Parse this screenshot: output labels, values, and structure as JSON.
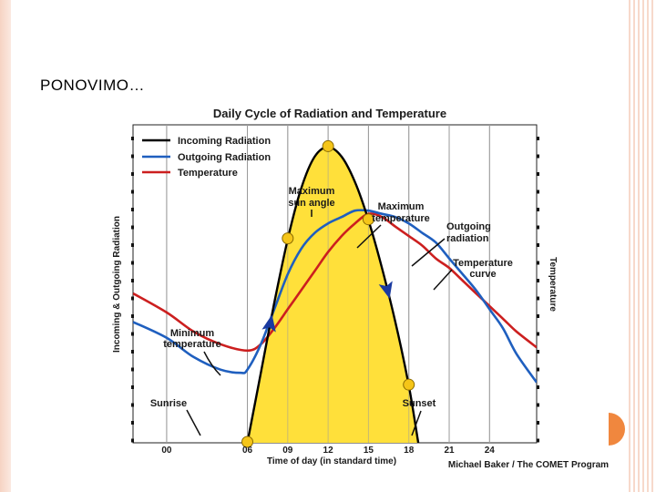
{
  "slide": {
    "title": "PONOVIMO…"
  },
  "colors": {
    "incoming": "#000000",
    "outgoing": "#1f5fbf",
    "temperature": "#cc1f1f",
    "sunFill": "#ffe03a",
    "marker": "#f5c518",
    "arrow": "#1a3aa0",
    "accent": "#f0873e"
  },
  "chart_data": {
    "type": "line",
    "title": "Daily Cycle of Radiation and Temperature",
    "xlabel": "Time of day (in standard time)",
    "ylabel_left": "Incoming & Outgoing Radiation",
    "ylabel_right": "Temperature",
    "credit": "Michael Baker / The COMET Program",
    "x_ticks": [
      "00",
      "06",
      "09",
      "12",
      "15",
      "18",
      "21",
      "24"
    ],
    "x_tick_values": [
      0,
      6,
      9,
      12,
      15,
      18,
      21,
      24
    ],
    "xlim": [
      -2.5,
      27.5
    ],
    "ylim": [
      0,
      100
    ],
    "legend": [
      {
        "label": "Incoming Radiation",
        "color": "#000000"
      },
      {
        "label": "Outgoing Radiation",
        "color": "#1f5fbf"
      },
      {
        "label": "Temperature",
        "color": "#cc1f1f"
      }
    ],
    "series": [
      {
        "name": "Incoming Radiation",
        "x": [
          6,
          7,
          8,
          9,
          10,
          11,
          12,
          13,
          14,
          15,
          16,
          17,
          18,
          18.7
        ],
        "values": [
          0,
          22,
          44,
          64,
          80,
          90,
          93,
          90,
          82,
          70,
          55,
          38,
          18,
          0
        ]
      },
      {
        "name": "Outgoing Radiation",
        "x": [
          -2.5,
          0,
          2,
          4,
          5.5,
          6,
          7,
          8,
          9,
          10,
          11,
          12,
          13,
          14,
          15,
          16,
          17,
          18,
          19,
          20,
          21,
          22,
          23,
          24,
          25,
          26,
          27.5
        ],
        "values": [
          38,
          33,
          27,
          23,
          22,
          23,
          31,
          42,
          53,
          61,
          66,
          69,
          71,
          73,
          73,
          72,
          71,
          69,
          66,
          63,
          58,
          53,
          48,
          42,
          36,
          28,
          19
        ]
      },
      {
        "name": "Temperature",
        "x": [
          -2.5,
          0,
          2,
          4,
          6,
          7,
          8,
          9,
          10,
          11,
          12,
          13,
          14,
          15,
          16,
          17,
          18,
          19,
          20,
          21,
          22,
          23,
          24,
          25,
          26,
          27.5
        ],
        "values": [
          47,
          41,
          35,
          31,
          29,
          31,
          36,
          42,
          48,
          54,
          60,
          65,
          69,
          72,
          71,
          68,
          65,
          62,
          58,
          55,
          51,
          47,
          43,
          39,
          35,
          30
        ]
      }
    ],
    "markers_x": [
      6,
      9,
      12,
      15,
      18
    ],
    "annotations": [
      {
        "id": "max-sun",
        "lines": [
          "Maximum",
          "sun angle"
        ]
      },
      {
        "id": "max-temp",
        "lines": [
          "Maximum",
          "temperature"
        ]
      },
      {
        "id": "outgoing-rad",
        "lines": [
          "Outgoing",
          "radiation"
        ]
      },
      {
        "id": "temp-curve",
        "lines": [
          "Temperature",
          "curve"
        ]
      },
      {
        "id": "min-temp",
        "lines": [
          "Minimum",
          "temperature"
        ]
      },
      {
        "id": "sunrise",
        "lines": [
          "Sunrise"
        ]
      },
      {
        "id": "sunset",
        "lines": [
          "Sunset"
        ]
      }
    ]
  }
}
